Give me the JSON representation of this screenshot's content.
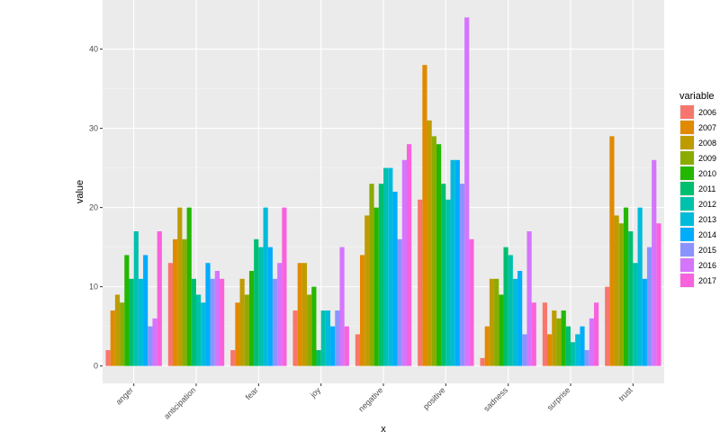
{
  "chart_data": {
    "type": "bar",
    "xlabel": "x",
    "ylabel": "value",
    "ylim": [
      -2.2,
      46.2
    ],
    "yticks": [
      0,
      10,
      20,
      30,
      40
    ],
    "grid": true,
    "legend": {
      "title": "variable",
      "position": "right"
    },
    "categories": [
      "anger",
      "anticipation",
      "fear",
      "joy",
      "negative",
      "positive",
      "sadness",
      "surprise",
      "trust"
    ],
    "series": [
      {
        "name": "2006",
        "color": "#F8766D",
        "values": [
          2,
          13,
          2,
          7,
          4,
          21,
          1,
          8,
          10
        ]
      },
      {
        "name": "2007",
        "color": "#E18A00",
        "values": [
          7,
          16,
          8,
          13,
          14,
          38,
          5,
          4,
          29
        ]
      },
      {
        "name": "2008",
        "color": "#BE9C00",
        "values": [
          9,
          20,
          11,
          13,
          19,
          31,
          11,
          7,
          19
        ]
      },
      {
        "name": "2009",
        "color": "#8CAB00",
        "values": [
          8,
          16,
          9,
          9,
          23,
          29,
          11,
          6,
          18
        ]
      },
      {
        "name": "2010",
        "color": "#24B700",
        "values": [
          14,
          20,
          12,
          10,
          20,
          28,
          9,
          7,
          20
        ]
      },
      {
        "name": "2011",
        "color": "#00BE70",
        "values": [
          11,
          11,
          16,
          2,
          23,
          23,
          15,
          5,
          17
        ]
      },
      {
        "name": "2012",
        "color": "#00C1AB",
        "values": [
          17,
          9,
          15,
          7,
          25,
          21,
          14,
          3,
          13
        ]
      },
      {
        "name": "2013",
        "color": "#00BBDA",
        "values": [
          11,
          8,
          20,
          7,
          25,
          26,
          11,
          4,
          20
        ]
      },
      {
        "name": "2014",
        "color": "#00ACFC",
        "values": [
          14,
          13,
          15,
          5,
          22,
          26,
          12,
          5,
          11
        ]
      },
      {
        "name": "2015",
        "color": "#8B93FF",
        "values": [
          5,
          11,
          11,
          7,
          16,
          23,
          4,
          2,
          15
        ]
      },
      {
        "name": "2016",
        "color": "#D575FE",
        "values": [
          6,
          12,
          13,
          15,
          26,
          44,
          17,
          6,
          26
        ]
      },
      {
        "name": "2017",
        "color": "#F962DD",
        "values": [
          17,
          11,
          20,
          5,
          28,
          16,
          8,
          8,
          18
        ]
      }
    ]
  }
}
